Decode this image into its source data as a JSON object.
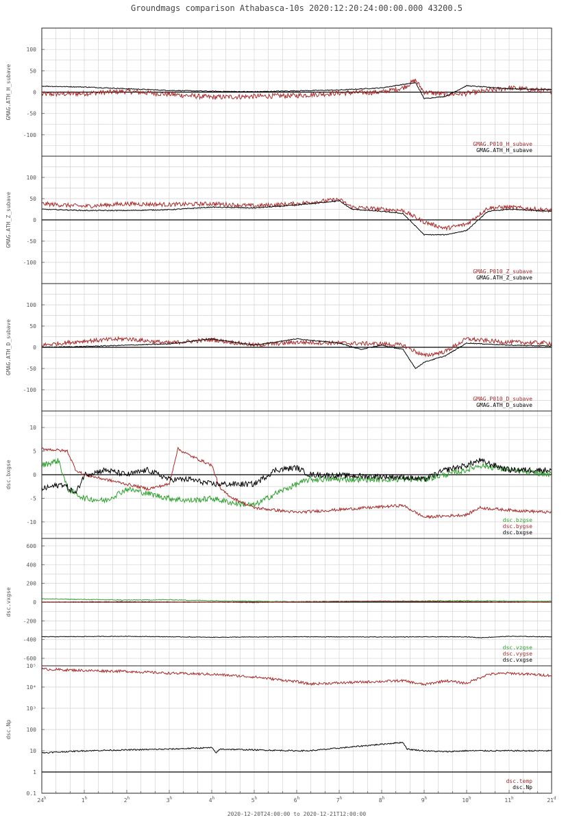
{
  "title": "Groundmags comparison Athabasca-10s 2020:12:20:24:00:00.000 43200.5",
  "footer": "2020-12-20T24:00:00 to 2020-12-21T12:00:00",
  "colors": {
    "black": "#000000",
    "red": "#a52a2a",
    "green": "#2ca02c",
    "grid": "#d3d3d3"
  },
  "chart_data": {
    "type": "line",
    "x_ticks": [
      {
        "t": 0,
        "label": "24",
        "sup": "h"
      },
      {
        "t": 1,
        "label": "1",
        "sup": "h"
      },
      {
        "t": 2,
        "label": "2",
        "sup": "h"
      },
      {
        "t": 3,
        "label": "3",
        "sup": "h"
      },
      {
        "t": 4,
        "label": "4",
        "sup": "h"
      },
      {
        "t": 5,
        "label": "5",
        "sup": "h"
      },
      {
        "t": 6,
        "label": "6",
        "sup": "h"
      },
      {
        "t": 7,
        "label": "7",
        "sup": "h"
      },
      {
        "t": 8,
        "label": "8",
        "sup": "h"
      },
      {
        "t": 9,
        "label": "9",
        "sup": "h"
      },
      {
        "t": 10,
        "label": "10",
        "sup": "h"
      },
      {
        "t": 11,
        "label": "11",
        "sup": "h"
      },
      {
        "t": 12,
        "label": "21",
        "sup": "d"
      }
    ],
    "xlim": [
      0,
      12
    ],
    "panels": [
      {
        "ylabel": "GMAG.ATH_H_subave",
        "ylim": [
          -150,
          150
        ],
        "log": false,
        "yticks": [
          "100",
          "50",
          "0",
          "-50",
          "-100"
        ],
        "ytick_vals": [
          100,
          50,
          0,
          -50,
          -100
        ],
        "series": [
          {
            "name": "GMAG.P010_H_subave",
            "color": "red",
            "noise": 6,
            "x": [
              0,
              1,
              2,
              3,
              4,
              5,
              6,
              7,
              8,
              8.5,
              8.8,
              9,
              9.5,
              10,
              11,
              12
            ],
            "y": [
              -5,
              -3,
              2,
              -5,
              -12,
              -10,
              -8,
              -2,
              0,
              10,
              28,
              0,
              -5,
              -3,
              10,
              2
            ]
          },
          {
            "name": "GMAG.ATH_H_subave",
            "color": "black",
            "noise": 1,
            "x": [
              0,
              1,
              2,
              3,
              4,
              5,
              6,
              7,
              8,
              8.5,
              8.8,
              9,
              9.5,
              10,
              11,
              12
            ],
            "y": [
              14,
              12,
              8,
              4,
              2,
              1,
              3,
              5,
              10,
              18,
              22,
              -15,
              -10,
              15,
              8,
              6
            ]
          }
        ]
      },
      {
        "ylabel": "GMAG.ATH_Z_subave",
        "ylim": [
          -150,
          150
        ],
        "log": false,
        "yticks": [
          "100",
          "50",
          "0",
          "-50",
          "-100"
        ],
        "ytick_vals": [
          100,
          50,
          0,
          -50,
          -100
        ],
        "series": [
          {
            "name": "GMAG.P010_Z_subave",
            "color": "red",
            "noise": 5,
            "x": [
              0,
              1,
              2,
              3,
              4,
              5,
              6,
              7,
              7.3,
              8,
              8.5,
              9,
              9.5,
              10,
              10.5,
              11,
              12
            ],
            "y": [
              38,
              32,
              38,
              36,
              38,
              33,
              38,
              48,
              30,
              25,
              22,
              -5,
              -20,
              -10,
              28,
              30,
              22
            ]
          },
          {
            "name": "GMAG.ATH_Z_subave",
            "color": "black",
            "noise": 1,
            "x": [
              0,
              1,
              2,
              3,
              4,
              5,
              6,
              7,
              7.3,
              8,
              8.5,
              9,
              9.5,
              10,
              10.5,
              11,
              12
            ],
            "y": [
              25,
              22,
              22,
              24,
              30,
              28,
              35,
              45,
              25,
              20,
              15,
              -35,
              -35,
              -25,
              20,
              25,
              20
            ]
          }
        ]
      },
      {
        "ylabel": "GMAG.ATH_D_subave",
        "ylim": [
          -150,
          150
        ],
        "log": false,
        "yticks": [
          "100",
          "50",
          "0",
          "-50",
          "-100"
        ],
        "ytick_vals": [
          100,
          50,
          0,
          -50,
          -100
        ],
        "series": [
          {
            "name": "GMAG.P010_D_subave",
            "color": "red",
            "noise": 5,
            "x": [
              0,
              1,
              2,
              3,
              4,
              5,
              6,
              7,
              8,
              8.5,
              9,
              9.5,
              10,
              10.5,
              11,
              12
            ],
            "y": [
              5,
              15,
              20,
              10,
              18,
              5,
              12,
              10,
              8,
              5,
              -20,
              -10,
              20,
              15,
              12,
              10
            ]
          },
          {
            "name": "GMAG.ATH_D_subave",
            "color": "black",
            "noise": 1,
            "x": [
              0,
              1,
              2,
              3,
              4,
              5,
              6,
              7,
              7.5,
              8,
              8.5,
              8.8,
              9,
              9.5,
              10,
              11,
              12
            ],
            "y": [
              0,
              2,
              5,
              8,
              20,
              5,
              20,
              10,
              -5,
              5,
              -5,
              -50,
              -35,
              -20,
              10,
              5,
              3
            ]
          }
        ]
      },
      {
        "ylabel": "dsc.bxgse",
        "ylim": [
          -13.5,
          13.5
        ],
        "log": false,
        "yticks": [
          "10",
          "5",
          "0",
          "-5",
          "-10"
        ],
        "ytick_vals": [
          10,
          5,
          0,
          -5,
          -10
        ],
        "series": [
          {
            "name": "dsc.bzgse",
            "color": "green",
            "noise": 0.6,
            "x": [
              0,
              0.4,
              0.6,
              0.8,
              1,
              1.5,
              2,
              2.5,
              3,
              3.5,
              4,
              4.5,
              5,
              5.5,
              6,
              6.3,
              8.5,
              9,
              10,
              10.3,
              11,
              12
            ],
            "y": [
              2,
              3,
              -3,
              -4,
              -5,
              -5.5,
              -3,
              -4,
              -5,
              -5.5,
              -5,
              -6,
              -6.5,
              -4,
              -2,
              -1,
              -1,
              -1,
              1,
              2,
              1,
              0
            ]
          },
          {
            "name": "dsc.bygse",
            "color": "red",
            "noise": 0.3,
            "x": [
              0,
              0.6,
              0.8,
              1,
              1.5,
              2,
              2.5,
              3,
              3.2,
              3.5,
              4,
              4.2,
              4.5,
              5,
              6,
              8.5,
              9,
              10,
              10.3,
              11,
              12
            ],
            "y": [
              5.5,
              5,
              1,
              0,
              -1,
              -2,
              -3,
              -2,
              5.5,
              4,
              2,
              -3,
              -5,
              -7,
              -8,
              -6.5,
              -9,
              -8.5,
              -7,
              -7.5,
              -8
            ]
          },
          {
            "name": "dsc.bxgse",
            "color": "black",
            "noise": 0.6,
            "x": [
              0,
              0.5,
              0.8,
              1,
              1.5,
              2,
              2.5,
              3,
              3.5,
              4,
              4.5,
              5,
              5.5,
              6,
              6.3,
              8.5,
              9,
              9.5,
              10,
              10.3,
              11,
              12
            ],
            "y": [
              -3,
              -2,
              -4,
              0,
              1,
              0,
              1,
              -1,
              -1,
              -2,
              -2,
              -2,
              1,
              1.5,
              0,
              -0.5,
              -1,
              1,
              2,
              3,
              1,
              1
            ]
          }
        ]
      },
      {
        "ylabel": "dsc.vxgse",
        "ylim": [
          -680,
          680
        ],
        "log": false,
        "yticks": [
          "600",
          "400",
          "200",
          "0",
          "-200",
          "-400",
          "-600"
        ],
        "ytick_vals": [
          600,
          400,
          200,
          0,
          -200,
          -400,
          -600
        ],
        "series": [
          {
            "name": "dsc.vzgse",
            "color": "green",
            "noise": 4,
            "x": [
              0,
              1,
              2,
              3,
              4,
              5,
              6,
              8,
              10,
              11,
              12
            ],
            "y": [
              35,
              28,
              22,
              25,
              15,
              10,
              5,
              10,
              15,
              10,
              10
            ]
          },
          {
            "name": "dsc.vygse",
            "color": "red",
            "noise": 3,
            "x": [
              0,
              2,
              4,
              5,
              6,
              8,
              10,
              12
            ],
            "y": [
              0,
              5,
              0,
              -5,
              5,
              10,
              5,
              0
            ]
          },
          {
            "name": "dsc.vxgse",
            "color": "black",
            "noise": 3,
            "x": [
              0,
              2,
              4,
              6,
              8,
              10,
              10.3,
              11,
              12
            ],
            "y": [
              -370,
              -365,
              -375,
              -370,
              -372,
              -370,
              -380,
              -365,
              -370
            ]
          }
        ]
      },
      {
        "ylabel": "dsc.Np",
        "ylim": [
          0.1,
          100000
        ],
        "log": true,
        "yticks": [
          "10⁵",
          "10⁴",
          "10³",
          "100",
          "10",
          "1",
          "0.1"
        ],
        "ytick_vals": [
          100000,
          10000,
          1000,
          100,
          10,
          1,
          0.1
        ],
        "series": [
          {
            "name": "dsc.temp",
            "color": "red",
            "noise": 0.06,
            "x": [
              0,
              1,
              2,
              3,
              4,
              5,
              6,
              6.3,
              8.5,
              9,
              9.5,
              10,
              10.5,
              11,
              12
            ],
            "y": [
              70000,
              60000,
              55000,
              45000,
              40000,
              30000,
              18000,
              14000,
              20000,
              13000,
              20000,
              15000,
              40000,
              45000,
              35000
            ]
          },
          {
            "name": "dsc.Np",
            "color": "black",
            "noise": 0.03,
            "x": [
              0,
              1,
              2,
              3,
              4,
              4.1,
              4.2,
              5,
              6,
              6.3,
              8.5,
              8.6,
              9,
              9.5,
              10,
              11,
              12
            ],
            "y": [
              8,
              10,
              11,
              12,
              14,
              8,
              12,
              11,
              10,
              10,
              25,
              12,
              10,
              9,
              10,
              10,
              10
            ]
          }
        ]
      }
    ]
  }
}
